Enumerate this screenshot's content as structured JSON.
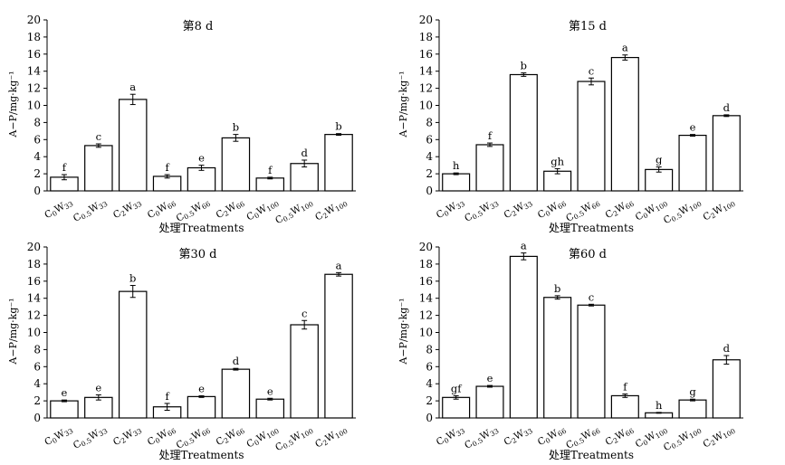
{
  "figure": {
    "y_axis_label": "A−P/mg·kg⁻¹",
    "x_axis_label": "处理Treatments"
  },
  "chart_data": [
    {
      "type": "bar",
      "title": "第8 d",
      "ylabel": "A−P/mg·kg⁻¹",
      "xlabel": "处理Treatments",
      "ylim": [
        0,
        20
      ],
      "yticks": [
        0,
        2,
        4,
        6,
        8,
        10,
        12,
        14,
        16,
        18,
        20
      ],
      "categories": [
        {
          "base": "C",
          "sub1": "0",
          "mid": "W",
          "sub2": "33"
        },
        {
          "base": "C",
          "sub1": "0.5",
          "mid": "W",
          "sub2": "33"
        },
        {
          "base": "C",
          "sub1": "2",
          "mid": "W",
          "sub2": "33"
        },
        {
          "base": "C",
          "sub1": "0",
          "mid": "W",
          "sub2": "66"
        },
        {
          "base": "C",
          "sub1": "0.5",
          "mid": "W",
          "sub2": "66"
        },
        {
          "base": "C",
          "sub1": "2",
          "mid": "W",
          "sub2": "66"
        },
        {
          "base": "C",
          "sub1": "0",
          "mid": "W",
          "sub2": "100"
        },
        {
          "base": "C",
          "sub1": "0.5",
          "mid": "W",
          "sub2": "100"
        },
        {
          "base": "C",
          "sub1": "2",
          "mid": "W",
          "sub2": "100"
        }
      ],
      "values": [
        1.6,
        5.3,
        10.7,
        1.7,
        2.7,
        6.2,
        1.5,
        3.2,
        6.6
      ],
      "errors": [
        0.3,
        0.2,
        0.6,
        0.2,
        0.3,
        0.4,
        0.1,
        0.4,
        0.1
      ],
      "letters": [
        "f",
        "c",
        "a",
        "f",
        "e",
        "b",
        "f",
        "d",
        "b"
      ]
    },
    {
      "type": "bar",
      "title": "第15 d",
      "ylabel": "A−P/mg·kg⁻¹",
      "xlabel": "处理Treatments",
      "ylim": [
        0,
        20
      ],
      "yticks": [
        0,
        2,
        4,
        6,
        8,
        10,
        12,
        14,
        16,
        18,
        20
      ],
      "categories": [
        {
          "base": "C",
          "sub1": "0",
          "mid": "W",
          "sub2": "33"
        },
        {
          "base": "C",
          "sub1": "0.5",
          "mid": "W",
          "sub2": "33"
        },
        {
          "base": "C",
          "sub1": "2",
          "mid": "W",
          "sub2": "33"
        },
        {
          "base": "C",
          "sub1": "0",
          "mid": "W",
          "sub2": "66"
        },
        {
          "base": "C",
          "sub1": "0.5",
          "mid": "W",
          "sub2": "66"
        },
        {
          "base": "C",
          "sub1": "2",
          "mid": "W",
          "sub2": "66"
        },
        {
          "base": "C",
          "sub1": "0",
          "mid": "W",
          "sub2": "100"
        },
        {
          "base": "C",
          "sub1": "0.5",
          "mid": "W",
          "sub2": "100"
        },
        {
          "base": "C",
          "sub1": "2",
          "mid": "W",
          "sub2": "100"
        }
      ],
      "values": [
        2.0,
        5.4,
        13.6,
        2.3,
        12.8,
        15.6,
        2.5,
        6.5,
        8.8
      ],
      "errors": [
        0.1,
        0.2,
        0.2,
        0.3,
        0.4,
        0.3,
        0.3,
        0.1,
        0.1
      ],
      "letters": [
        "h",
        "f",
        "b",
        "gh",
        "c",
        "a",
        "g",
        "e",
        "d"
      ]
    },
    {
      "type": "bar",
      "title": "第30 d",
      "ylabel": "A−P/mg·kg⁻¹",
      "xlabel": "处理Treatments",
      "ylim": [
        0,
        20
      ],
      "yticks": [
        0,
        2,
        4,
        6,
        8,
        10,
        12,
        14,
        16,
        18,
        20
      ],
      "categories": [
        {
          "base": "C",
          "sub1": "0",
          "mid": "W",
          "sub2": "33"
        },
        {
          "base": "C",
          "sub1": "0.5",
          "mid": "W",
          "sub2": "33"
        },
        {
          "base": "C",
          "sub1": "2",
          "mid": "W",
          "sub2": "33"
        },
        {
          "base": "C",
          "sub1": "0",
          "mid": "W",
          "sub2": "66"
        },
        {
          "base": "C",
          "sub1": "0.5",
          "mid": "W",
          "sub2": "66"
        },
        {
          "base": "C",
          "sub1": "2",
          "mid": "W",
          "sub2": "66"
        },
        {
          "base": "C",
          "sub1": "0",
          "mid": "W",
          "sub2": "100"
        },
        {
          "base": "C",
          "sub1": "0.5",
          "mid": "W",
          "sub2": "100"
        },
        {
          "base": "C",
          "sub1": "2",
          "mid": "W",
          "sub2": "100"
        }
      ],
      "values": [
        2.0,
        2.4,
        14.8,
        1.3,
        2.5,
        5.7,
        2.2,
        10.9,
        16.8
      ],
      "errors": [
        0.1,
        0.3,
        0.7,
        0.4,
        0.1,
        0.1,
        0.1,
        0.5,
        0.2
      ],
      "letters": [
        "e",
        "e",
        "b",
        "f",
        "e",
        "d",
        "e",
        "c",
        "a"
      ]
    },
    {
      "type": "bar",
      "title": "第60 d",
      "ylabel": "A−P/mg·kg⁻¹",
      "xlabel": "处理Treatments",
      "ylim": [
        0,
        20
      ],
      "yticks": [
        0,
        2,
        4,
        6,
        8,
        10,
        12,
        14,
        16,
        18,
        20
      ],
      "categories": [
        {
          "base": "C",
          "sub1": "0",
          "mid": "W",
          "sub2": "33"
        },
        {
          "base": "C",
          "sub1": "0.5",
          "mid": "W",
          "sub2": "33"
        },
        {
          "base": "C",
          "sub1": "2",
          "mid": "W",
          "sub2": "33"
        },
        {
          "base": "C",
          "sub1": "0",
          "mid": "W",
          "sub2": "66"
        },
        {
          "base": "C",
          "sub1": "0.5",
          "mid": "W",
          "sub2": "66"
        },
        {
          "base": "C",
          "sub1": "2",
          "mid": "W",
          "sub2": "66"
        },
        {
          "base": "C",
          "sub1": "0",
          "mid": "W",
          "sub2": "100"
        },
        {
          "base": "C",
          "sub1": "0.5",
          "mid": "W",
          "sub2": "100"
        },
        {
          "base": "C",
          "sub1": "2",
          "mid": "W",
          "sub2": "100"
        }
      ],
      "values": [
        2.4,
        3.7,
        18.9,
        14.1,
        13.2,
        2.6,
        0.6,
        2.1,
        6.8
      ],
      "errors": [
        0.2,
        0.1,
        0.4,
        0.2,
        0.1,
        0.2,
        0.05,
        0.1,
        0.5
      ],
      "letters": [
        "gf",
        "e",
        "a",
        "b",
        "c",
        "f",
        "h",
        "g",
        "d"
      ]
    }
  ]
}
